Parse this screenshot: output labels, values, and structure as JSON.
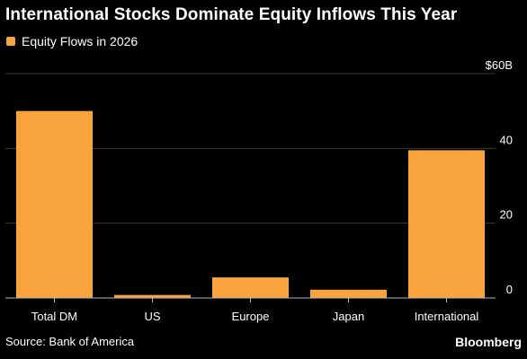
{
  "title": "International Stocks Dominate Equity Inflows This Year",
  "source": "Source: Bank of America",
  "brand": "Bloomberg",
  "colors": {
    "background": "#000000",
    "bar": "#f8a33c",
    "grid": "#3a3a3a",
    "axis": "#b5b5b5",
    "text": "#ffffff"
  },
  "chart_data": {
    "type": "bar",
    "title": "International Stocks Dominate Equity Inflows This Year",
    "categories": [
      "Total DM",
      "US",
      "Europe",
      "Japan",
      "International"
    ],
    "series": [
      {
        "name": "Equity Flows in 2026",
        "values": [
          50.0,
          0.8,
          5.5,
          2.2,
          39.5
        ]
      }
    ],
    "ylim": [
      0,
      60
    ],
    "yticks": [
      0,
      20,
      40,
      60
    ],
    "ytick_labels": [
      "0",
      "20",
      "40",
      "$60B"
    ],
    "xlabel": "",
    "ylabel": "",
    "grid": true,
    "legend_position": "top-left",
    "y_axis_side": "right"
  }
}
